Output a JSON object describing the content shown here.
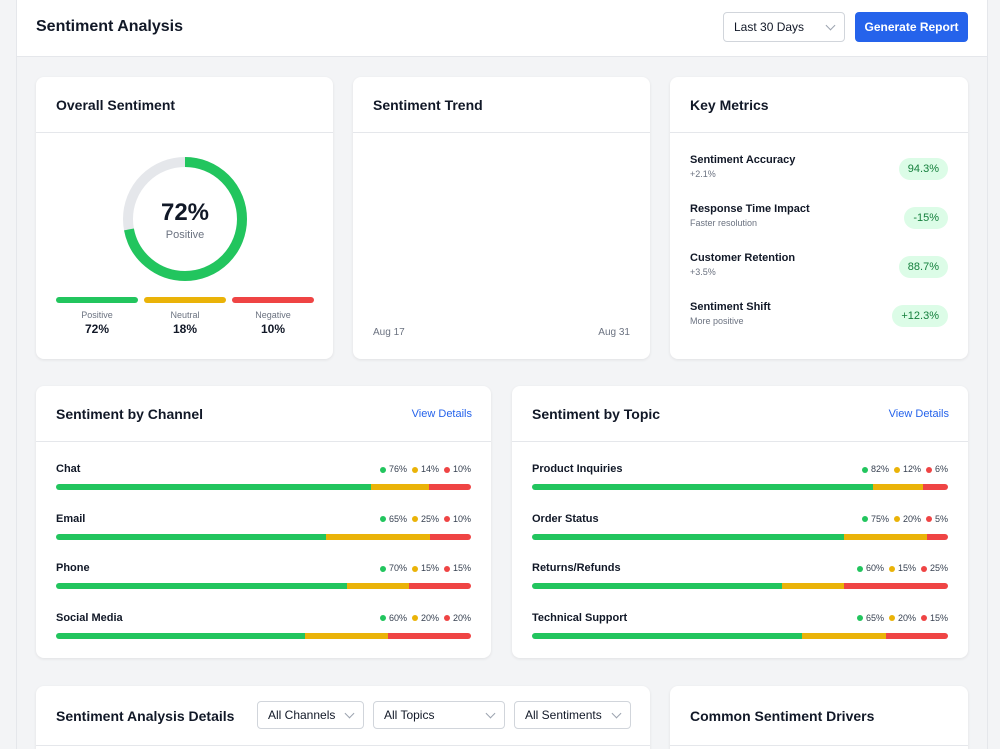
{
  "header": {
    "title": "Sentiment Analysis",
    "range_select": "Last 30 Days",
    "generate_label": "Generate Report"
  },
  "overall": {
    "title": "Overall Sentiment",
    "percent": "72%",
    "label": "Positive",
    "positive_fraction": 0.72,
    "legend": [
      {
        "label": "Positive",
        "value": "72%",
        "color": "#22c55e"
      },
      {
        "label": "Neutral",
        "value": "18%",
        "color": "#eab308"
      },
      {
        "label": "Negative",
        "value": "10%",
        "color": "#ef4444"
      }
    ]
  },
  "trend": {
    "title": "Sentiment Trend",
    "x_start": "Aug 17",
    "x_end": "Aug 31"
  },
  "metrics": {
    "title": "Key Metrics",
    "items": [
      {
        "title": "Sentiment Accuracy",
        "sub": "+2.1%",
        "value": "94.3%"
      },
      {
        "title": "Response Time Impact",
        "sub": "Faster resolution",
        "value": "-15%"
      },
      {
        "title": "Customer Retention",
        "sub": "+3.5%",
        "value": "88.7%"
      },
      {
        "title": "Sentiment Shift",
        "sub": "More positive",
        "value": "+12.3%"
      }
    ]
  },
  "channel": {
    "title": "Sentiment by Channel",
    "link": "View Details",
    "rows": [
      {
        "name": "Chat",
        "pos": 76,
        "neu": 14,
        "neg": 10,
        "pos_label": "76%",
        "neu_label": "14%",
        "neg_label": "10%"
      },
      {
        "name": "Email",
        "pos": 65,
        "neu": 25,
        "neg": 10,
        "pos_label": "65%",
        "neu_label": "25%",
        "neg_label": "10%"
      },
      {
        "name": "Phone",
        "pos": 70,
        "neu": 15,
        "neg": 15,
        "pos_label": "70%",
        "neu_label": "15%",
        "neg_label": "15%"
      },
      {
        "name": "Social Media",
        "pos": 60,
        "neu": 20,
        "neg": 20,
        "pos_label": "60%",
        "neu_label": "20%",
        "neg_label": "20%"
      }
    ]
  },
  "topic": {
    "title": "Sentiment by Topic",
    "link": "View Details",
    "rows": [
      {
        "name": "Product Inquiries",
        "pos": 82,
        "neu": 12,
        "neg": 6,
        "pos_label": "82%",
        "neu_label": "12%",
        "neg_label": "6%"
      },
      {
        "name": "Order Status",
        "pos": 75,
        "neu": 20,
        "neg": 5,
        "pos_label": "75%",
        "neu_label": "20%",
        "neg_label": "5%"
      },
      {
        "name": "Returns/Refunds",
        "pos": 60,
        "neu": 15,
        "neg": 25,
        "pos_label": "60%",
        "neu_label": "15%",
        "neg_label": "25%"
      },
      {
        "name": "Technical Support",
        "pos": 65,
        "neu": 20,
        "neg": 15,
        "pos_label": "65%",
        "neu_label": "20%",
        "neg_label": "15%"
      }
    ]
  },
  "details": {
    "title": "Sentiment Analysis Details",
    "channels_select": "All Channels",
    "topics_select": "All Topics",
    "sentiments_select": "All Sentiments"
  },
  "drivers": {
    "title": "Common Sentiment Drivers"
  }
}
